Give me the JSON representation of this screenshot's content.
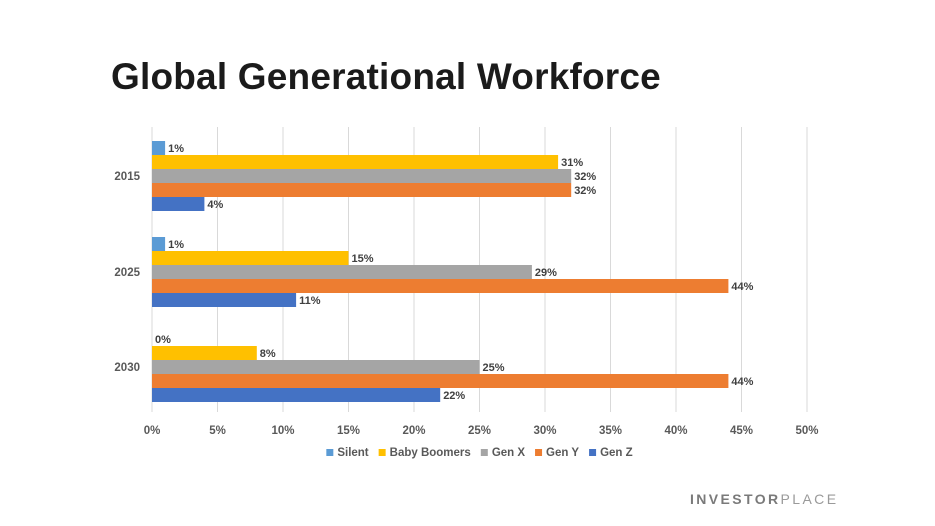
{
  "title": "Global Generational Workforce",
  "brand": {
    "part1": "INVESTOR",
    "part2": "PLACE"
  },
  "chart_data": {
    "type": "bar",
    "orientation": "horizontal",
    "categories": [
      "2015",
      "2025",
      "2030"
    ],
    "series": [
      {
        "name": "Silent",
        "color": "#5b9bd5",
        "values": [
          1,
          1,
          0
        ]
      },
      {
        "name": "Baby Boomers",
        "color": "#ffc000",
        "values": [
          31,
          15,
          8
        ]
      },
      {
        "name": "Gen X",
        "color": "#a5a5a5",
        "values": [
          32,
          29,
          25
        ]
      },
      {
        "name": "Gen Y",
        "color": "#ed7d31",
        "values": [
          32,
          44,
          44
        ]
      },
      {
        "name": "Gen Z",
        "color": "#4472c4",
        "values": [
          4,
          11,
          22
        ]
      }
    ],
    "x_ticks": [
      "0%",
      "5%",
      "10%",
      "15%",
      "20%",
      "25%",
      "30%",
      "35%",
      "40%",
      "45%",
      "50%"
    ],
    "xlim": [
      0,
      50
    ],
    "value_suffix": "%",
    "grid": "vertical",
    "legend_position": "bottom"
  }
}
